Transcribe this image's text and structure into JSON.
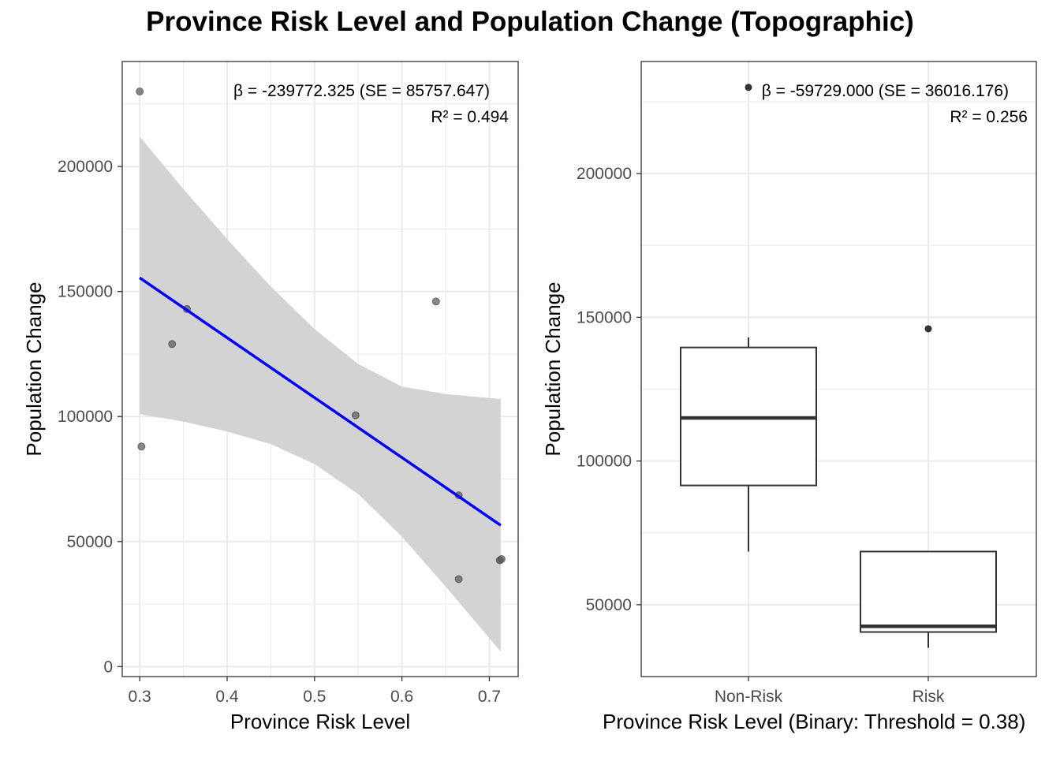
{
  "title": "Province Risk Level and Population Change (Topographic)",
  "colors": {
    "regression_line": "#0000ff",
    "confidence_band": "#d3d3d3",
    "points": "#555555",
    "grid": "#ebebeb",
    "panel_border": "#333333"
  },
  "chart_data": [
    {
      "type": "scatter",
      "xlabel": "Province Risk Level",
      "ylabel": "Population Change",
      "xlim": [
        0.28,
        0.733
      ],
      "ylim": [
        -4000,
        242000
      ],
      "x_ticks": [
        0.3,
        0.4,
        0.5,
        0.6,
        0.7
      ],
      "x_tick_labels": [
        "0.3",
        "0.4",
        "0.5",
        "0.6",
        "0.7"
      ],
      "y_ticks": [
        0,
        50000,
        100000,
        150000,
        200000
      ],
      "y_tick_labels": [
        "0",
        "50000",
        "100000",
        "150000",
        "200000"
      ],
      "grid": true,
      "annotation": {
        "line1": "β = -239772.325 (SE = 85757.647)",
        "line2": "R² = 0.494"
      },
      "points": [
        {
          "x": 0.3,
          "y": 230000
        },
        {
          "x": 0.302,
          "y": 88000
        },
        {
          "x": 0.337,
          "y": 129000
        },
        {
          "x": 0.354,
          "y": 143000
        },
        {
          "x": 0.547,
          "y": 100500
        },
        {
          "x": 0.639,
          "y": 146000
        },
        {
          "x": 0.665,
          "y": 68500
        },
        {
          "x": 0.665,
          "y": 35000
        },
        {
          "x": 0.712,
          "y": 42500
        },
        {
          "x": 0.714,
          "y": 43000
        }
      ],
      "regression": {
        "x_start": 0.3,
        "y_start": 155500,
        "x_end": 0.713,
        "y_end": 56500
      },
      "confidence_band": {
        "x": [
          0.3,
          0.35,
          0.4,
          0.45,
          0.5,
          0.55,
          0.6,
          0.65,
          0.713
        ],
        "upper": [
          212000,
          191000,
          171000,
          152000,
          135000,
          121000,
          112000,
          109000,
          107000
        ],
        "lower": [
          101000,
          98000,
          94000,
          89000,
          81000,
          69000,
          52000,
          32000,
          6000
        ]
      }
    },
    {
      "type": "box",
      "xlabel": "Province Risk Level (Binary: Threshold = 0.38)",
      "ylabel": "Population Change",
      "ylim": [
        25000,
        239000
      ],
      "categories": [
        "Non-Risk",
        "Risk"
      ],
      "y_ticks": [
        50000,
        100000,
        150000,
        200000
      ],
      "y_tick_labels": [
        "50000",
        "100000",
        "150000",
        "200000"
      ],
      "grid": true,
      "annotation": {
        "line1": "β = -59729.000 (SE = 36016.176)",
        "line2": "R² = 0.256"
      },
      "boxes": [
        {
          "category": "Non-Risk",
          "whisker_low": 68500,
          "q1": 91500,
          "median": 115000,
          "q3": 139500,
          "whisker_high": 143000,
          "outliers": [
            230000
          ]
        },
        {
          "category": "Risk",
          "whisker_low": 35000,
          "q1": 40500,
          "median": 42500,
          "q3": 68500,
          "whisker_high": 68500,
          "outliers": [
            146000
          ]
        }
      ]
    }
  ]
}
